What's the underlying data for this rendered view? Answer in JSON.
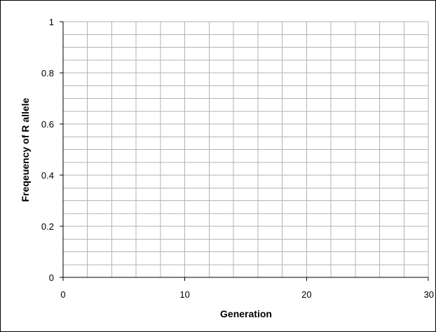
{
  "chart_data": {
    "type": "line",
    "title": "",
    "xlabel": "Generation",
    "ylabel": "Freqeuency of R allele",
    "xlim": [
      0,
      30
    ],
    "ylim": [
      0,
      1
    ],
    "x_ticks": [
      0,
      10,
      20,
      30
    ],
    "x_tick_labels": [
      "0",
      "10",
      "20",
      "30"
    ],
    "x_minor_step": 2,
    "y_ticks": [
      0,
      0.2,
      0.4,
      0.6,
      0.8,
      1
    ],
    "y_tick_labels": [
      "0",
      "0.2",
      "0.4",
      "0.6",
      "0.8",
      "1"
    ],
    "y_minor_step": 0.05,
    "grid": true,
    "series": []
  },
  "colors": {
    "grid_line": "#b3b3b3",
    "axis_line": "#000000",
    "background": "#ffffff"
  }
}
